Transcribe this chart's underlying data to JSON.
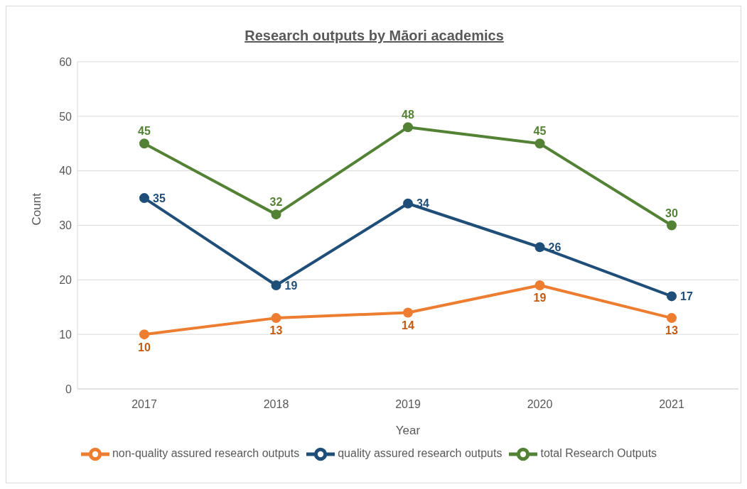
{
  "chart_data": {
    "type": "line",
    "title": "Research outputs by Māori academics",
    "xlabel": "Year",
    "ylabel": "Count",
    "categories": [
      "2017",
      "2018",
      "2019",
      "2020",
      "2021"
    ],
    "series": [
      {
        "name": "non-quality assured research outputs",
        "color": "#ed7d31",
        "values": [
          10,
          13,
          14,
          19,
          13
        ]
      },
      {
        "name": "quality assured research outputs",
        "color": "#1f4e79",
        "values": [
          35,
          19,
          34,
          26,
          17
        ]
      },
      {
        "name": "total Research Outputs",
        "color": "#548235",
        "values": [
          45,
          32,
          48,
          45,
          30
        ]
      }
    ],
    "ylim": [
      0,
      60
    ],
    "yticks": [
      0,
      10,
      20,
      30,
      40,
      50,
      60
    ],
    "grid": "y",
    "legend": "bottom",
    "marker": "circle",
    "line_style": "solid",
    "data_labels": true
  }
}
